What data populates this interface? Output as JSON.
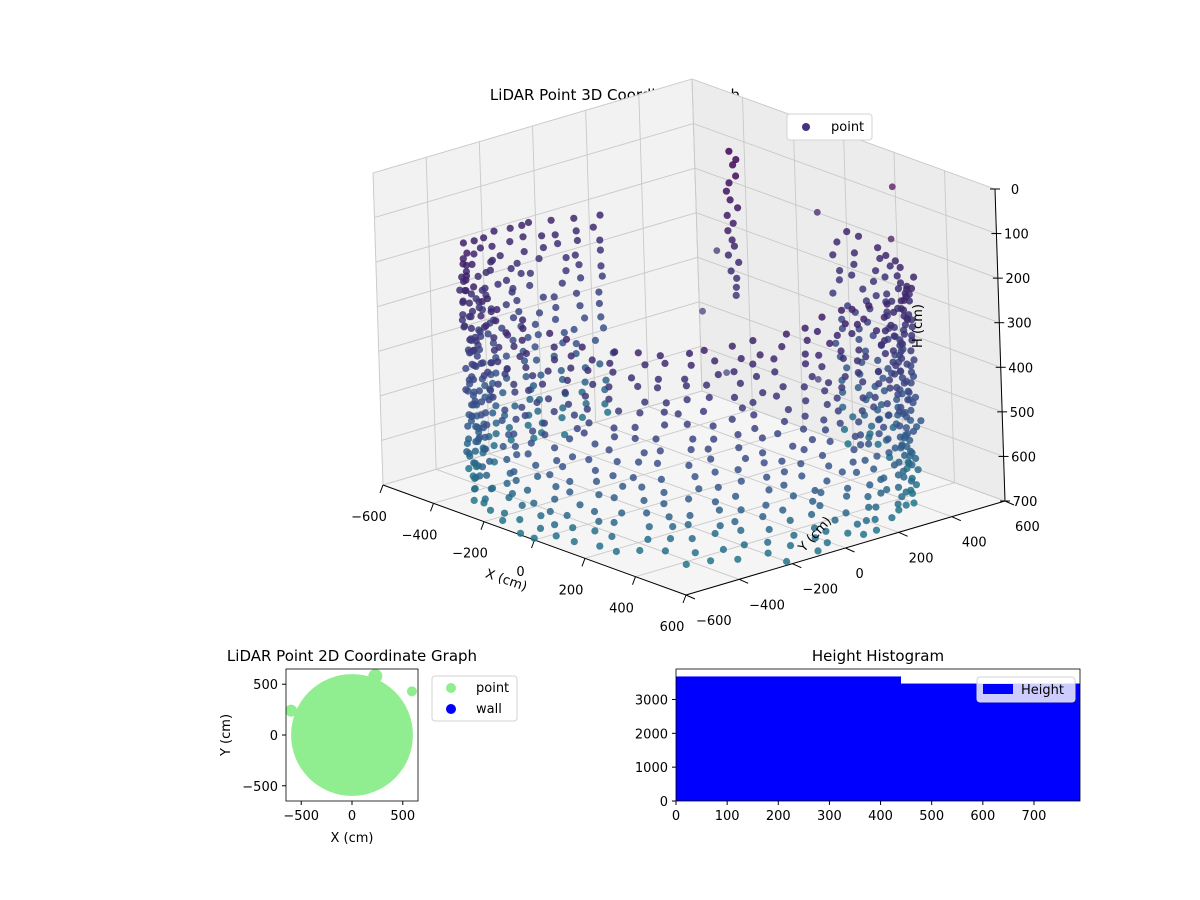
{
  "colors": {
    "point_3d": "#46327e",
    "point_2d": "#90ee90",
    "wall": "#0000ff",
    "hist": "#0000ff"
  },
  "chart_data": [
    {
      "type": "scatter",
      "title": "LiDAR Point 3D Coordinate Graph",
      "xlabel": "X (cm)",
      "ylabel": "Y (cm)",
      "zlabel": "H (cm)",
      "xlim": [
        -600,
        600
      ],
      "ylim": [
        -600,
        600
      ],
      "zlim": [
        0,
        700
      ],
      "z_inverted": true,
      "xticks": [
        "−600",
        "−400",
        "−200",
        "0",
        "200",
        "400",
        "600"
      ],
      "yticks": [
        "−600",
        "−400",
        "−200",
        "0",
        "200",
        "400",
        "600"
      ],
      "zticks": [
        "0",
        "100",
        "200",
        "300",
        "400",
        "500",
        "600",
        "700"
      ],
      "grid": true,
      "legend": {
        "location": "top-right",
        "entries": [
          "point"
        ]
      },
      "series": [
        {
          "name": "point",
          "shape": "cylindrical wall of points",
          "radius_cm": 600,
          "height_range_cm": [
            150,
            700
          ],
          "outliers": [
            {
              "x": 350,
              "y": 450,
              "h": 20
            },
            {
              "x": 500,
              "y": 300,
              "h": 80
            },
            {
              "x": 100,
              "y": 400,
              "h": 120
            },
            {
              "x": -200,
              "y": 300,
              "h": 250
            },
            {
              "x": 620,
              "y": -100,
              "h": 300
            },
            {
              "x": -50,
              "y": 100,
              "h": 320
            },
            {
              "x": 200,
              "y": -50,
              "h": 380
            }
          ]
        }
      ]
    },
    {
      "type": "scatter",
      "title": "LiDAR Point 2D Coordinate Graph",
      "xlabel": "X (cm)",
      "ylabel": "Y (cm)",
      "xlim": [
        -650,
        650
      ],
      "ylim": [
        -650,
        650
      ],
      "xticks": [
        "−500",
        "0",
        "500"
      ],
      "yticks": [
        "−500",
        "0",
        "500"
      ],
      "legend": {
        "location": "outside-right",
        "entries": [
          "point",
          "wall"
        ]
      },
      "series": [
        {
          "name": "point",
          "region": "filled disc of points, radius about 600 cm"
        },
        {
          "name": "wall",
          "points": []
        }
      ]
    },
    {
      "type": "bar",
      "title": "Height Histogram",
      "xlim": [
        0,
        790
      ],
      "ylim": [
        0,
        3900
      ],
      "xticks": [
        "0",
        "100",
        "200",
        "300",
        "400",
        "500",
        "600",
        "700"
      ],
      "yticks": [
        "0",
        "1000",
        "2000",
        "3000"
      ],
      "legend": {
        "location": "top-right",
        "entries": [
          "Height"
        ]
      },
      "series": [
        {
          "name": "Height",
          "bins": [
            {
              "x0": 0,
              "x1": 440,
              "count": 3680
            },
            {
              "x0": 440,
              "x1": 790,
              "count": 3470
            }
          ]
        }
      ]
    }
  ]
}
